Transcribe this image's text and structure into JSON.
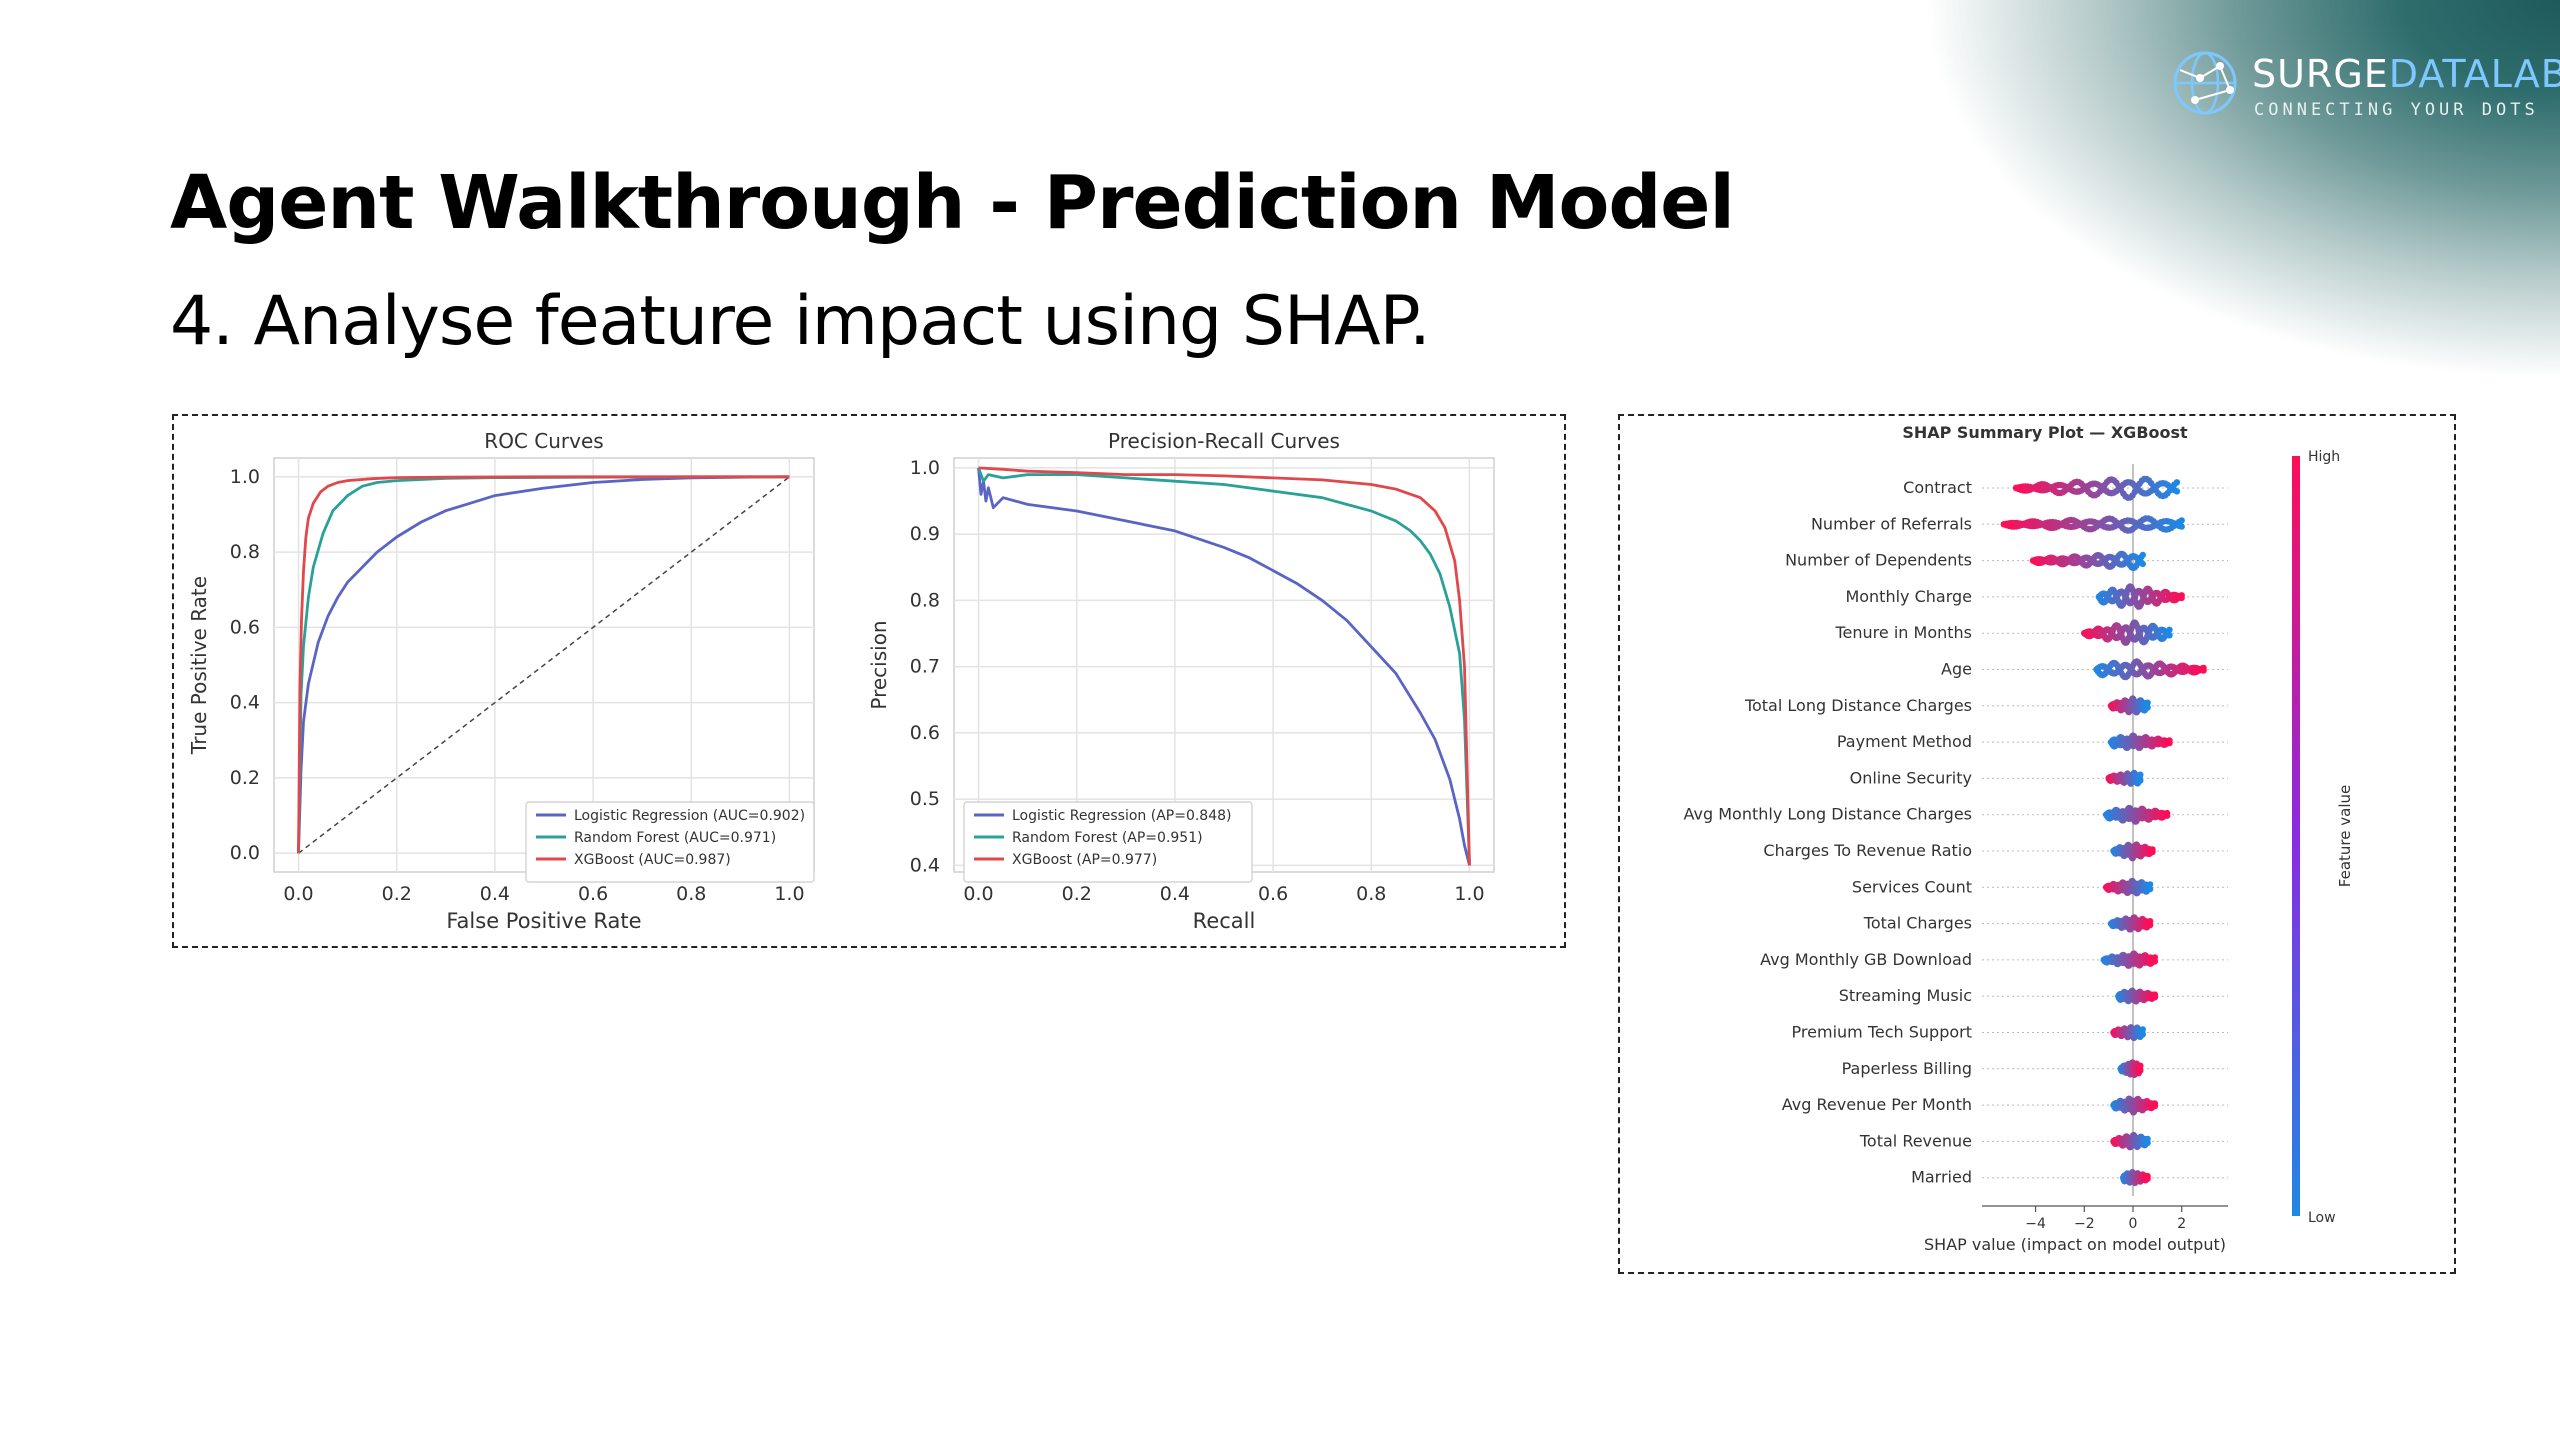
{
  "slide": {
    "title": "Agent Walkthrough - Prediction Model",
    "subtitle": "4. Analyse feature impact using SHAP."
  },
  "brand": {
    "name_part1": "SURGE",
    "name_part2": "DATALAB",
    "tagline": "CONNECTING YOUR DOTS",
    "logo_icon": "globe-network-icon"
  },
  "colors": {
    "logistic": "#5a64c4",
    "forest": "#2aa198",
    "xgb": "#e0484b",
    "shap_high": "#ff0d57",
    "shap_low": "#1e88e5",
    "brand_accent": "#7ec8ff"
  },
  "chart_data": [
    {
      "type": "line",
      "title": "ROC Curves",
      "xlabel": "False Positive Rate",
      "ylabel": "True Positive Rate",
      "xlim": [
        -0.05,
        1.05
      ],
      "ylim": [
        -0.05,
        1.05
      ],
      "xticks": [
        "0.0",
        "0.2",
        "0.4",
        "0.6",
        "0.8",
        "1.0"
      ],
      "yticks": [
        "0.0",
        "0.2",
        "0.4",
        "0.6",
        "0.8",
        "1.0"
      ],
      "grid": true,
      "legend_position": "lower-right",
      "diagonal": true,
      "series": [
        {
          "name": "Logistic Regression (AUC=0.902)",
          "color": "#5a64c4",
          "x": [
            0,
            0.005,
            0.01,
            0.02,
            0.04,
            0.06,
            0.08,
            0.1,
            0.13,
            0.16,
            0.2,
            0.25,
            0.3,
            0.35,
            0.4,
            0.5,
            0.6,
            0.7,
            0.8,
            0.9,
            1.0
          ],
          "y": [
            0,
            0.22,
            0.35,
            0.45,
            0.56,
            0.63,
            0.68,
            0.72,
            0.76,
            0.8,
            0.84,
            0.88,
            0.91,
            0.93,
            0.95,
            0.97,
            0.985,
            0.993,
            0.997,
            0.999,
            1.0
          ]
        },
        {
          "name": "Random Forest (AUC=0.971)",
          "color": "#2aa198",
          "x": [
            0,
            0.005,
            0.01,
            0.02,
            0.03,
            0.05,
            0.07,
            0.1,
            0.13,
            0.16,
            0.2,
            0.3,
            0.4,
            0.6,
            0.8,
            1.0
          ],
          "y": [
            0,
            0.42,
            0.55,
            0.68,
            0.76,
            0.85,
            0.91,
            0.95,
            0.975,
            0.985,
            0.99,
            0.996,
            0.998,
            0.999,
            1.0,
            1.0
          ]
        },
        {
          "name": "XGBoost (AUC=0.987)",
          "color": "#e0484b",
          "x": [
            0,
            0.003,
            0.006,
            0.01,
            0.015,
            0.02,
            0.03,
            0.045,
            0.06,
            0.08,
            0.1,
            0.15,
            0.2,
            0.3,
            0.5,
            0.8,
            1.0
          ],
          "y": [
            0,
            0.45,
            0.62,
            0.75,
            0.84,
            0.89,
            0.93,
            0.96,
            0.975,
            0.985,
            0.99,
            0.995,
            0.998,
            0.999,
            1.0,
            1.0,
            1.0
          ]
        }
      ]
    },
    {
      "type": "line",
      "title": "Precision-Recall Curves",
      "xlabel": "Recall",
      "ylabel": "Precision",
      "xlim": [
        -0.05,
        1.05
      ],
      "ylim": [
        0.39,
        1.015
      ],
      "xticks": [
        "0.0",
        "0.2",
        "0.4",
        "0.6",
        "0.8",
        "1.0"
      ],
      "yticks": [
        "0.4",
        "0.5",
        "0.6",
        "0.7",
        "0.8",
        "0.9",
        "1.0"
      ],
      "grid": true,
      "legend_position": "lower-left",
      "series": [
        {
          "name": "Logistic Regression (AP=0.848)",
          "color": "#5a64c4",
          "x": [
            0,
            0.005,
            0.01,
            0.015,
            0.02,
            0.03,
            0.05,
            0.1,
            0.2,
            0.3,
            0.4,
            0.5,
            0.55,
            0.6,
            0.65,
            0.7,
            0.75,
            0.8,
            0.85,
            0.9,
            0.93,
            0.96,
            0.98,
            0.99,
            1.0
          ],
          "y": [
            1.0,
            0.96,
            0.98,
            0.95,
            0.97,
            0.94,
            0.955,
            0.945,
            0.935,
            0.92,
            0.905,
            0.88,
            0.865,
            0.845,
            0.825,
            0.8,
            0.77,
            0.73,
            0.69,
            0.63,
            0.59,
            0.53,
            0.47,
            0.43,
            0.4
          ]
        },
        {
          "name": "Random Forest (AP=0.951)",
          "color": "#2aa198",
          "x": [
            0,
            0.01,
            0.02,
            0.05,
            0.1,
            0.2,
            0.3,
            0.4,
            0.5,
            0.6,
            0.7,
            0.75,
            0.8,
            0.85,
            0.88,
            0.9,
            0.92,
            0.94,
            0.96,
            0.98,
            0.99,
            1.0
          ],
          "y": [
            1.0,
            0.98,
            0.99,
            0.985,
            0.99,
            0.99,
            0.985,
            0.98,
            0.975,
            0.965,
            0.955,
            0.945,
            0.935,
            0.92,
            0.905,
            0.89,
            0.87,
            0.84,
            0.79,
            0.72,
            0.62,
            0.4
          ]
        },
        {
          "name": "XGBoost (AP=0.977)",
          "color": "#e0484b",
          "x": [
            0,
            0.05,
            0.1,
            0.2,
            0.3,
            0.4,
            0.5,
            0.6,
            0.7,
            0.8,
            0.85,
            0.9,
            0.93,
            0.95,
            0.97,
            0.98,
            0.99,
            0.995,
            1.0
          ],
          "y": [
            1.0,
            0.998,
            0.995,
            0.993,
            0.99,
            0.99,
            0.988,
            0.985,
            0.982,
            0.975,
            0.968,
            0.955,
            0.935,
            0.91,
            0.86,
            0.8,
            0.7,
            0.55,
            0.4
          ]
        }
      ]
    },
    {
      "type": "scatter",
      "title": "SHAP Summary Plot — XGBoost",
      "xlabel": "SHAP value (impact on model output)",
      "xlim": [
        -6.2,
        3.9
      ],
      "xticks": [
        -4,
        -2,
        0,
        2
      ],
      "colorbar_label": "Feature value",
      "colorbar_high": "High",
      "colorbar_low": "Low",
      "features": [
        {
          "name": "Contract",
          "min": -4.8,
          "max": 1.8,
          "high_side": "neg",
          "spread": 0.9
        },
        {
          "name": "Number of Referrals",
          "min": -5.3,
          "max": 2.0,
          "high_side": "neg",
          "spread": 0.5
        },
        {
          "name": "Number of Dependents",
          "min": -4.1,
          "max": 0.4,
          "high_side": "neg",
          "spread": 0.6
        },
        {
          "name": "Monthly Charge",
          "min": -1.4,
          "max": 2.0,
          "high_side": "pos",
          "spread": 1.0
        },
        {
          "name": "Tenure in Months",
          "min": -2.0,
          "max": 1.5,
          "high_side": "neg",
          "spread": 1.0
        },
        {
          "name": "Age",
          "min": -1.5,
          "max": 2.9,
          "high_side": "pos",
          "spread": 0.7
        },
        {
          "name": "Total Long Distance Charges",
          "min": -0.9,
          "max": 0.6,
          "high_side": "neg",
          "spread": 0.6
        },
        {
          "name": "Payment Method",
          "min": -0.9,
          "max": 1.5,
          "high_side": "pos",
          "spread": 0.5
        },
        {
          "name": "Online Security",
          "min": -1.0,
          "max": 0.3,
          "high_side": "neg",
          "spread": 0.4
        },
        {
          "name": "Avg Monthly Long Distance Charges",
          "min": -1.1,
          "max": 1.4,
          "high_side": "pos",
          "spread": 0.6
        },
        {
          "name": "Charges To Revenue Ratio",
          "min": -0.8,
          "max": 0.8,
          "high_side": "pos",
          "spread": 0.6
        },
        {
          "name": "Services Count",
          "min": -1.1,
          "max": 0.7,
          "high_side": "neg",
          "spread": 0.5
        },
        {
          "name": "Total Charges",
          "min": -0.9,
          "max": 0.7,
          "high_side": "pos",
          "spread": 0.5
        },
        {
          "name": "Avg Monthly GB Download",
          "min": -1.2,
          "max": 0.9,
          "high_side": "pos",
          "spread": 0.5
        },
        {
          "name": "Streaming Music",
          "min": -0.6,
          "max": 0.9,
          "high_side": "pos",
          "spread": 0.4
        },
        {
          "name": "Premium Tech Support",
          "min": -0.8,
          "max": 0.4,
          "high_side": "neg",
          "spread": 0.4
        },
        {
          "name": "Paperless Billing",
          "min": -0.5,
          "max": 0.3,
          "high_side": "pos",
          "spread": 0.5
        },
        {
          "name": "Avg Revenue Per Month",
          "min": -0.8,
          "max": 0.9,
          "high_side": "pos",
          "spread": 0.6
        },
        {
          "name": "Total Revenue",
          "min": -0.8,
          "max": 0.6,
          "high_side": "neg",
          "spread": 0.5
        },
        {
          "name": "Married",
          "min": -0.4,
          "max": 0.6,
          "high_side": "pos",
          "spread": 0.4
        }
      ]
    }
  ]
}
